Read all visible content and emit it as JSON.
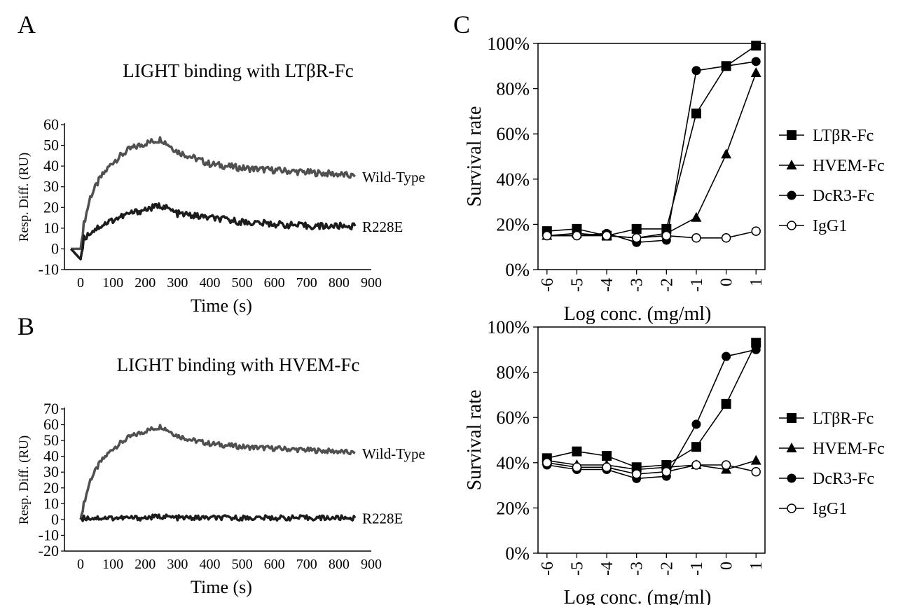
{
  "panels": {
    "A": {
      "letter": "A"
    },
    "B": {
      "letter": "B"
    },
    "C": {
      "letter": "C"
    }
  },
  "colors": {
    "wild_type": "#505050",
    "r228e": "#1c1c1c",
    "axis": "#000000"
  },
  "chart_data": [
    {
      "id": "A",
      "type": "line",
      "title": "LIGHT binding with LTβR-Fc",
      "xlabel": "Time (s)",
      "ylabel": "Resp. Diff. (RU)",
      "xlim": [
        -50,
        900
      ],
      "ylim": [
        -10,
        60
      ],
      "x_ticks": [
        0,
        100,
        200,
        300,
        400,
        500,
        600,
        700,
        800,
        900
      ],
      "y_ticks": [
        -10,
        0,
        10,
        20,
        30,
        40,
        50,
        60
      ],
      "series": [
        {
          "name": "Wild-Type",
          "x": [
            -30,
            0,
            10,
            30,
            60,
            100,
            150,
            200,
            250,
            300,
            350,
            400,
            500,
            600,
            700,
            800,
            850
          ],
          "values": [
            0,
            0,
            12,
            25,
            34,
            42,
            48,
            51,
            53,
            47,
            44,
            41,
            39,
            38,
            37,
            36,
            35
          ]
        },
        {
          "name": "R228E",
          "x": [
            -30,
            0,
            10,
            30,
            60,
            100,
            150,
            200,
            250,
            300,
            350,
            400,
            500,
            600,
            700,
            800,
            850
          ],
          "values": [
            0,
            -5,
            5,
            8,
            11,
            14,
            17,
            19,
            21,
            17,
            16,
            15,
            13,
            12,
            11,
            11,
            11
          ]
        }
      ]
    },
    {
      "id": "B",
      "type": "line",
      "title": "LIGHT binding with HVEM-Fc",
      "xlabel": "Time (s)",
      "ylabel": "Resp. Diff. (RU)",
      "xlim": [
        -50,
        900
      ],
      "ylim": [
        -20,
        70
      ],
      "x_ticks": [
        0,
        100,
        200,
        300,
        400,
        500,
        600,
        700,
        800,
        900
      ],
      "y_ticks": [
        -20,
        -10,
        0,
        10,
        20,
        30,
        40,
        50,
        60,
        70
      ],
      "series": [
        {
          "name": "Wild-Type",
          "x": [
            0,
            10,
            30,
            60,
            100,
            150,
            200,
            250,
            300,
            350,
            400,
            500,
            600,
            700,
            800,
            850
          ],
          "values": [
            0,
            10,
            25,
            36,
            45,
            52,
            56,
            59,
            53,
            50,
            48,
            46,
            45,
            44,
            43,
            42
          ]
        },
        {
          "name": "R228E",
          "x": [
            0,
            10,
            30,
            60,
            100,
            150,
            200,
            250,
            300,
            400,
            500,
            600,
            700,
            800,
            850
          ],
          "values": [
            0,
            1,
            1,
            1,
            1,
            1,
            1,
            2,
            1,
            1,
            1,
            1,
            1,
            1,
            1
          ]
        }
      ]
    },
    {
      "id": "C-top",
      "type": "line",
      "xlabel": "Log conc. (mg/ml)",
      "ylabel": "Survival rate",
      "xlim": [
        -6.3,
        1.3
      ],
      "ylim": [
        0,
        100
      ],
      "x_ticks": [
        -6,
        -5,
        -4,
        -3,
        -2,
        -1,
        0,
        1
      ],
      "y_ticks": [
        "0%",
        "20%",
        "40%",
        "60%",
        "80%",
        "100%"
      ],
      "categories": [
        -6,
        -5,
        -4,
        -3,
        -2,
        -1,
        0,
        1
      ],
      "series": [
        {
          "name": "LTβR-Fc",
          "marker": "square-filled",
          "values": [
            17,
            18,
            15,
            18,
            18,
            69,
            90,
            99
          ]
        },
        {
          "name": "HVEM-Fc",
          "marker": "triangle-filled",
          "values": [
            15,
            16,
            15,
            14,
            16,
            23,
            51,
            87
          ]
        },
        {
          "name": "DcR3-Fc",
          "marker": "circle-filled",
          "values": [
            15,
            15,
            16,
            12,
            13,
            88,
            90,
            92
          ]
        },
        {
          "name": "IgG1",
          "marker": "circle-open",
          "values": [
            15,
            15,
            15,
            14,
            15,
            14,
            14,
            17
          ]
        }
      ]
    },
    {
      "id": "C-bottom",
      "type": "line",
      "xlabel": "Log conc. (mg/ml)",
      "ylabel": "Survival rate",
      "xlim": [
        -6.3,
        1.3
      ],
      "ylim": [
        0,
        100
      ],
      "x_ticks": [
        -6,
        -5,
        -4,
        -3,
        -2,
        -1,
        0,
        1
      ],
      "y_ticks": [
        "0%",
        "20%",
        "40%",
        "60%",
        "80%",
        "100%"
      ],
      "categories": [
        -6,
        -5,
        -4,
        -3,
        -2,
        -1,
        0,
        1
      ],
      "series": [
        {
          "name": "LTβR-Fc",
          "marker": "square-filled",
          "values": [
            42,
            45,
            43,
            38,
            39,
            47,
            66,
            93
          ]
        },
        {
          "name": "HVEM-Fc",
          "marker": "triangle-filled",
          "values": [
            41,
            39,
            39,
            37,
            38,
            39,
            37,
            41
          ]
        },
        {
          "name": "DcR3-Fc",
          "marker": "circle-filled",
          "values": [
            39,
            37,
            37,
            33,
            34,
            57,
            87,
            90
          ]
        },
        {
          "name": "IgG1",
          "marker": "circle-open",
          "values": [
            40,
            38,
            38,
            35,
            36,
            39,
            39,
            36
          ]
        }
      ]
    }
  ]
}
